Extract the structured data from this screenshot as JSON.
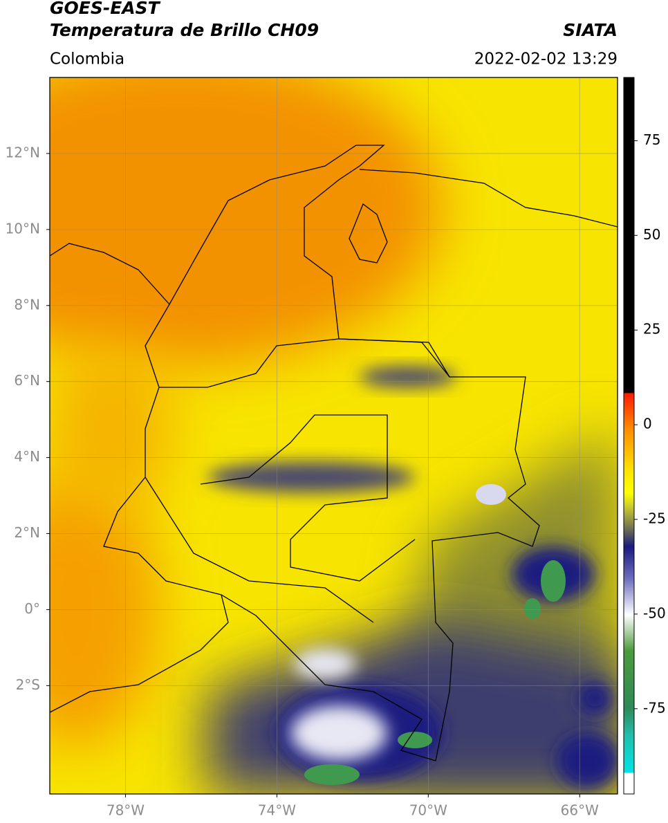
{
  "header": {
    "title": "GOES-EAST",
    "subtitle": "Temperatura de Brillo CH09",
    "source": "SIATA",
    "region": "Colombia",
    "datetime": "2022-02-02 13:29"
  },
  "map": {
    "xlim": [
      -80,
      -65
    ],
    "ylim": [
      -4.85,
      14
    ],
    "xticks": [
      {
        "value": -78,
        "label": "78°W"
      },
      {
        "value": -74,
        "label": "74°W"
      },
      {
        "value": -70,
        "label": "70°W"
      },
      {
        "value": -66,
        "label": "66°W"
      }
    ],
    "yticks": [
      {
        "value": 12,
        "label": "12°N"
      },
      {
        "value": 10,
        "label": "10°N"
      },
      {
        "value": 8,
        "label": "8°N"
      },
      {
        "value": 6,
        "label": "6°N"
      },
      {
        "value": 4,
        "label": "4°N"
      },
      {
        "value": 2,
        "label": "2°N"
      },
      {
        "value": 0,
        "label": "0°"
      },
      {
        "value": -2,
        "label": "2°S"
      }
    ],
    "grid": true
  },
  "colorbar": {
    "lim": [
      -97.5,
      91.7
    ],
    "ticks": [
      75,
      50,
      25,
      0,
      -25,
      -50,
      -75
    ]
  }
}
